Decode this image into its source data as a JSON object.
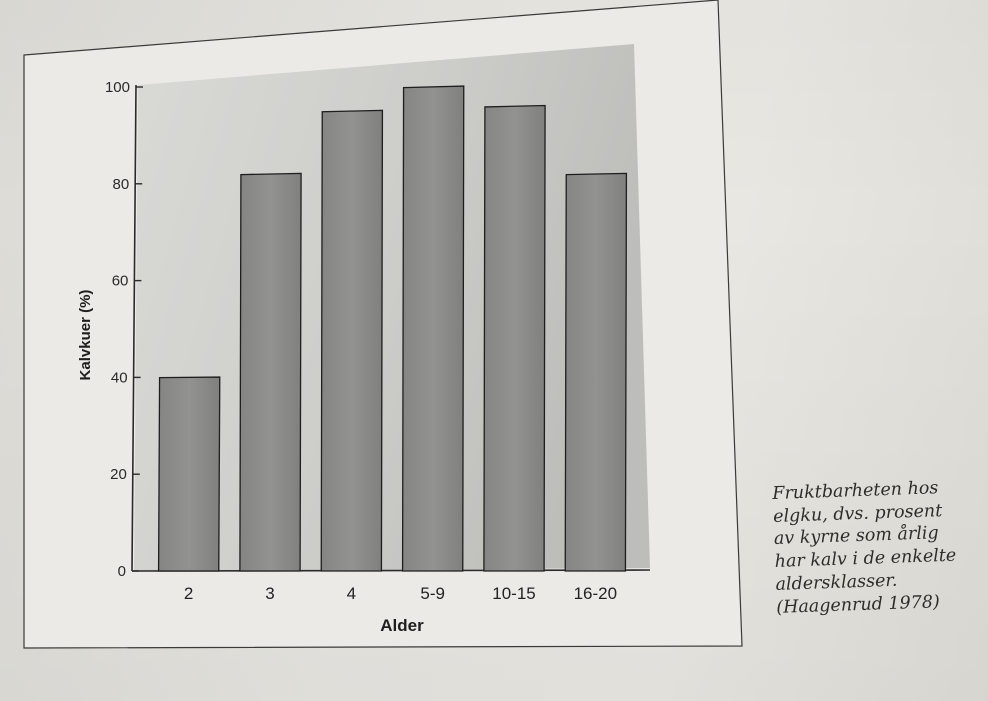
{
  "chart_data": {
    "type": "bar",
    "categories": [
      "2",
      "3",
      "4",
      "5-9",
      "10-15",
      "16-20"
    ],
    "values": [
      40,
      82,
      95,
      100,
      96,
      82
    ],
    "xlabel": "Alder",
    "ylabel": "Kalvkuer (%)",
    "ylim": [
      0,
      100
    ],
    "yticks": [
      "0",
      "20",
      "40",
      "60",
      "80",
      "100"
    ],
    "grid": false,
    "colors": {
      "bar_fill": "#8e8e8c",
      "bar_stroke": "#1e1e1e",
      "plot_bg": "#c9c9c6",
      "frame": "#2a2a2a"
    }
  },
  "caption": {
    "lines": [
      "Fruktbarheten hos",
      "elgku, dvs. prosent",
      "av kyrne som årlig",
      "har kalv i de enkelte",
      "aldersklasser.",
      "(Haagenrud 1978)"
    ]
  }
}
